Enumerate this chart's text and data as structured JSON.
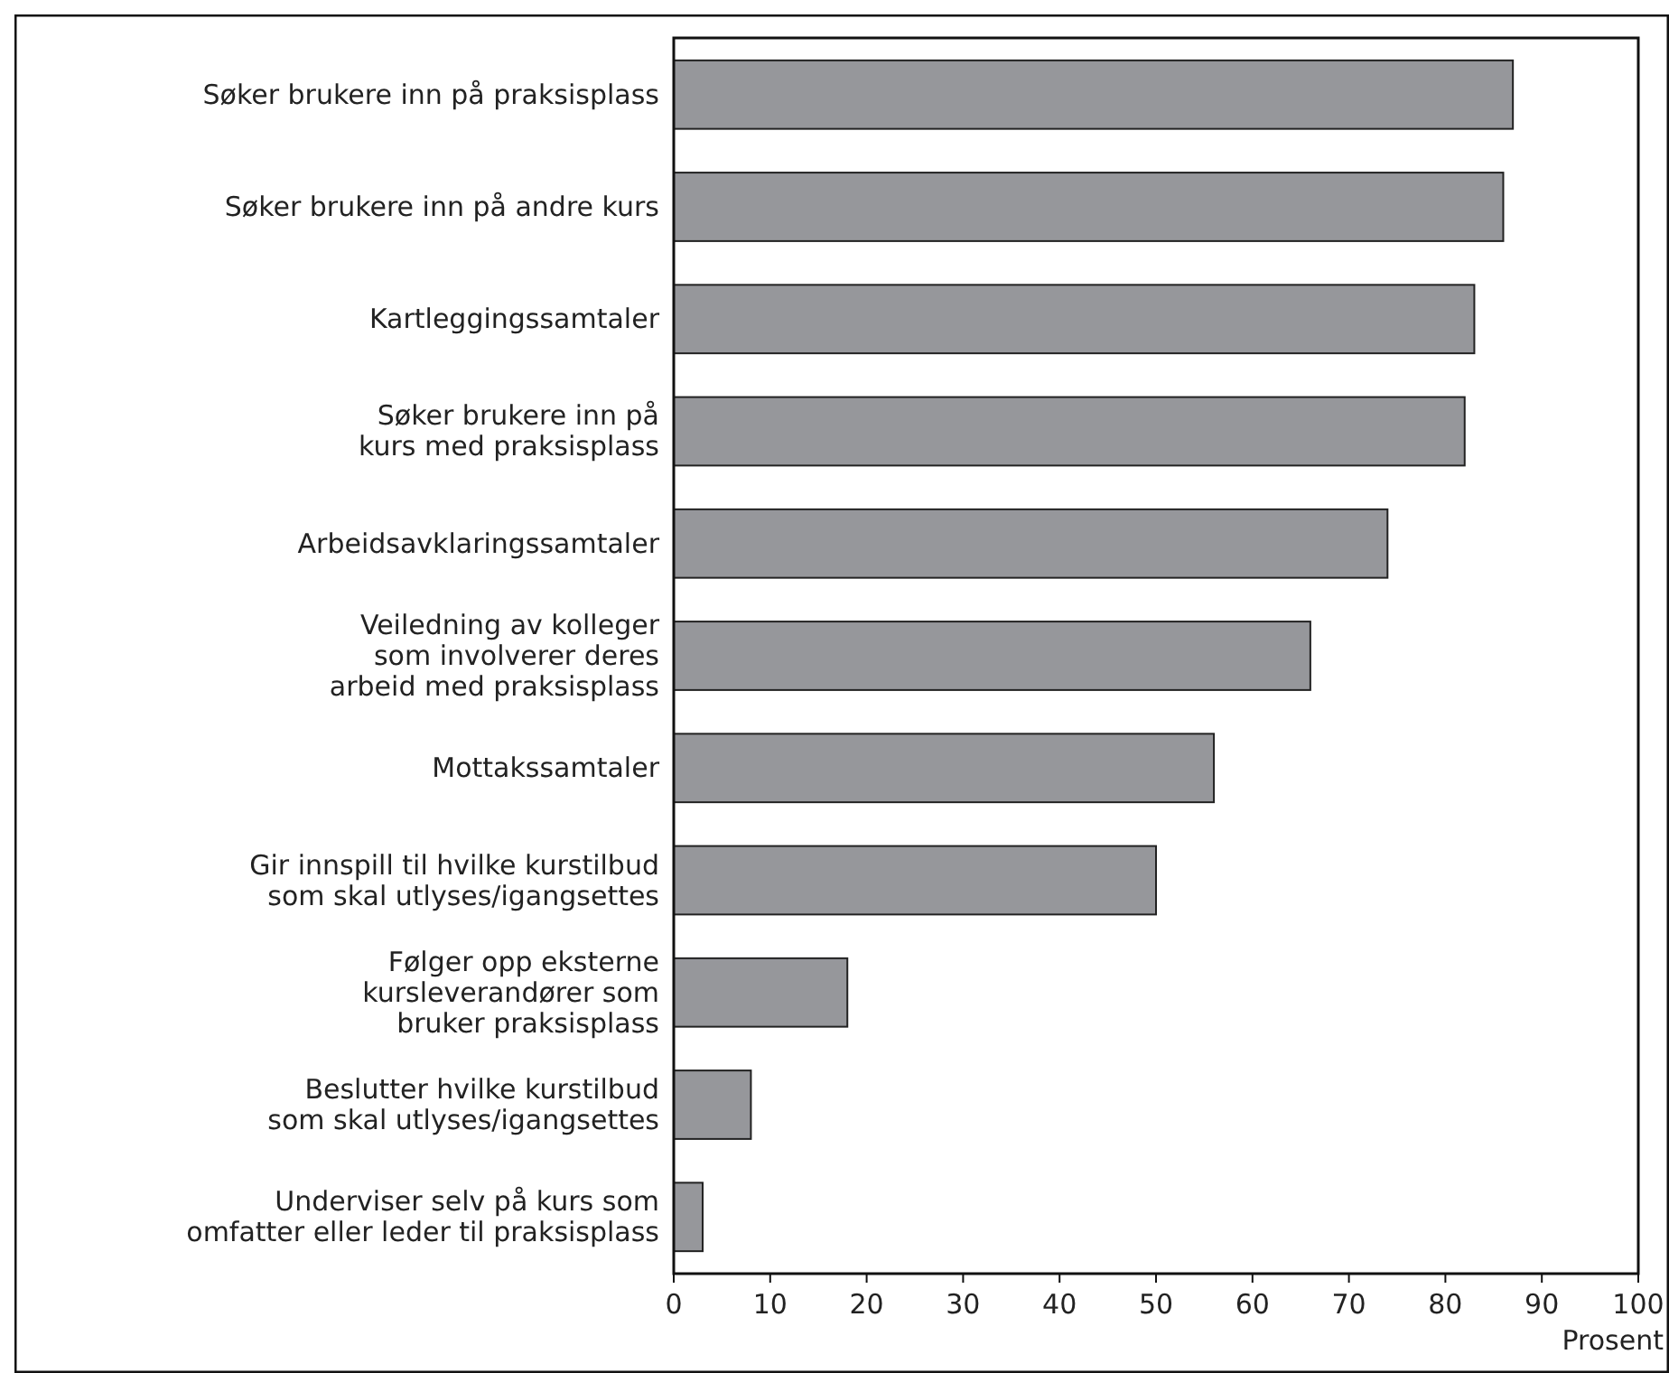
{
  "chart_data": {
    "type": "bar",
    "orientation": "horizontal",
    "xlabel": "Prosent",
    "categories": [
      "Søker brukere inn på praksisplass",
      "Søker brukere inn på andre kurs",
      "Kartleggingssamtaler",
      "Søker brukere inn på\nkurs med praksisplass",
      "Arbeidsavklaringssamtaler",
      "Veiledning av kolleger\nsom involverer deres\narbeid med praksisplass",
      "Mottakssamtaler",
      "Gir innspill til hvilke kurstilbud\nsom skal utlyses/igangsettes",
      "Følger opp eksterne\nkursleverandører som\nbruker praksisplass",
      "Beslutter hvilke kurstilbud\nsom skal utlyses/igangsettes",
      "Underviser selv på kurs som\nomfatter eller leder til praksisplass"
    ],
    "values": [
      87,
      86,
      83,
      82,
      74,
      66,
      56,
      50,
      18,
      8,
      3
    ],
    "color": "#96979b",
    "xlim": [
      0,
      100
    ],
    "xticks": [
      0,
      10,
      20,
      30,
      40,
      50,
      60,
      70,
      80,
      90,
      100
    ],
    "grid": false
  }
}
